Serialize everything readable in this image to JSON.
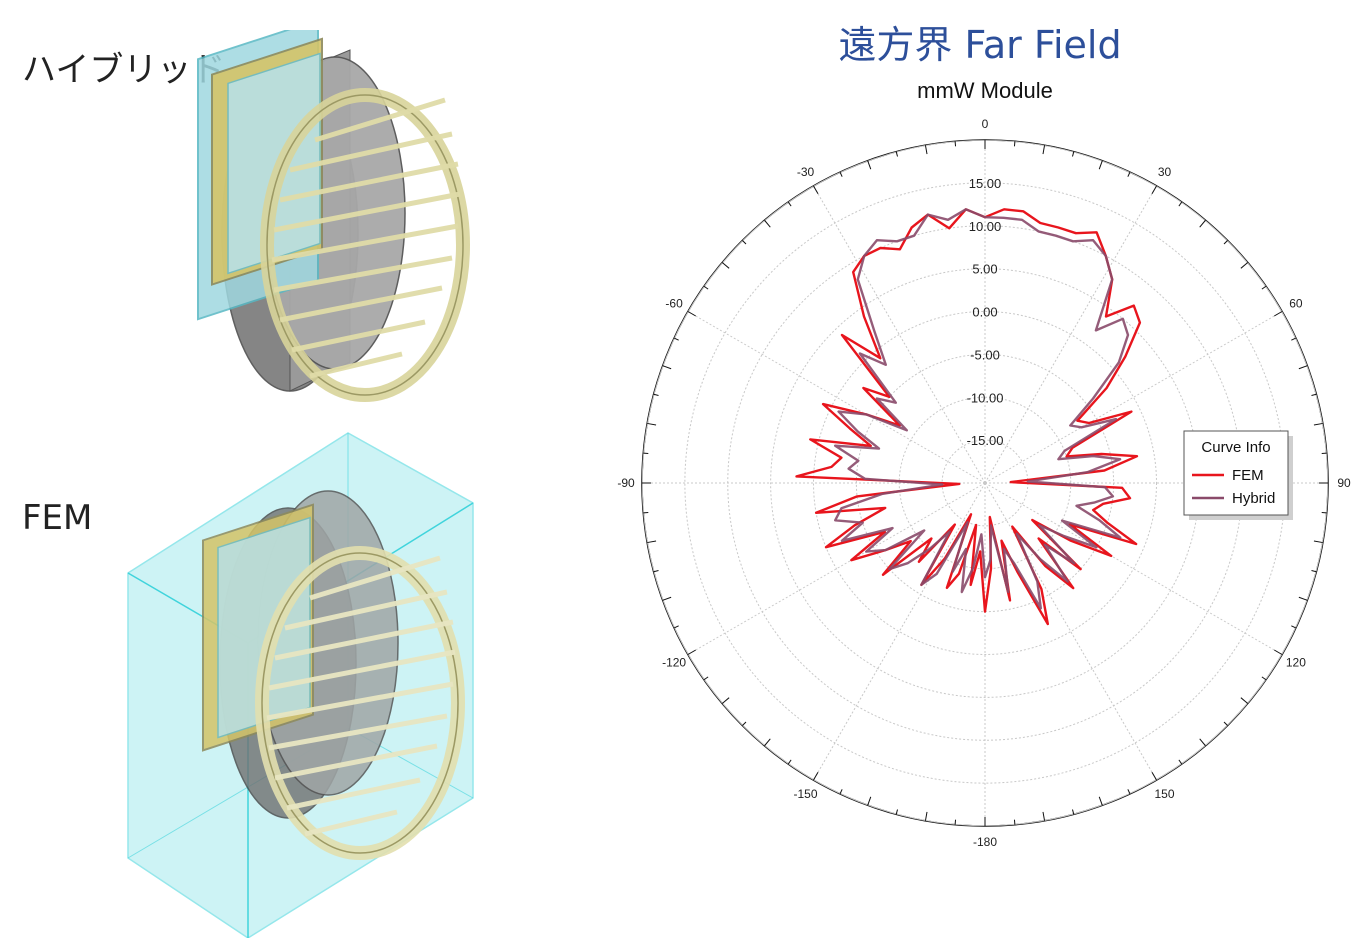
{
  "labels": {
    "hybrid": "ハイブリッド",
    "fem": "FEM"
  },
  "heading": "遠方界 Far Field",
  "colors": {
    "fem": "#e8151d",
    "hybrid": "#8a4a6a",
    "heading": "#2d4f9a",
    "airbox": "#40d4dc",
    "lens": "#9fd8e0",
    "ring": "#d8d49a",
    "patch": "#d4c468",
    "housing": "#8c8c8c"
  },
  "chart_data": {
    "type": "polar",
    "title": "mmW Module",
    "radial_range": [
      -20,
      20
    ],
    "radial_ticks": [
      -15,
      -10,
      -5,
      0,
      5,
      10,
      15
    ],
    "radial_tick_labels": [
      "-15.00",
      "-10.00",
      "-5.00",
      "0.00",
      "5.00",
      "10.00",
      "15.00"
    ],
    "angle_tick_values": [
      0,
      30,
      60,
      90,
      120,
      150,
      180,
      -150,
      -120,
      -90,
      -60,
      -30
    ],
    "angle_tick_labels": [
      "0",
      "30",
      "60",
      "90",
      "120",
      "150",
      "-180",
      "-150",
      "-120",
      "-90",
      "-60",
      "-30"
    ],
    "grid": true,
    "legend": {
      "title": "Curve Info",
      "placement": "right"
    },
    "series": [
      {
        "name": "FEM",
        "theta": [
          -180,
          -176,
          -172,
          -168,
          -164,
          -160,
          -156,
          -152,
          -148,
          -144,
          -140,
          -136,
          -132,
          -128,
          -124,
          -120,
          -116,
          -112,
          -108,
          -104,
          -100,
          -96,
          -92,
          -88,
          -84,
          -80,
          -76,
          -72,
          -68,
          -64,
          -60,
          -56,
          -52,
          -48,
          -44,
          -40,
          -36,
          -32,
          -28,
          -24,
          -20,
          -16,
          -12,
          -8,
          -4,
          0,
          4,
          8,
          12,
          16,
          20,
          24,
          28,
          32,
          36,
          40,
          44,
          48,
          52,
          56,
          60,
          64,
          68,
          72,
          76,
          80,
          84,
          88,
          92,
          96,
          100,
          104,
          108,
          112,
          116,
          120,
          124,
          128,
          132,
          136,
          140,
          144,
          148,
          152,
          156,
          160,
          164,
          168,
          172,
          176
        ],
        "r": [
          -5,
          -12,
          -8,
          -15,
          -9,
          -7,
          -16,
          -10,
          -6,
          -14,
          -8,
          -11,
          -4,
          -9,
          -6,
          -2,
          -7,
          0,
          -4,
          -8,
          0,
          -5,
          -17,
          2,
          -2,
          -3,
          1,
          -6,
          -3,
          1,
          -4,
          -8,
          -2,
          -5,
          4,
          -1,
          4,
          9,
          10,
          10,
          9,
          11,
          12,
          10,
          12,
          11,
          12,
          12,
          11,
          11,
          11,
          12,
          10,
          8,
          4,
          7,
          6,
          2,
          -2,
          -7,
          -6,
          -1,
          -9,
          -10,
          -6,
          -2,
          -6,
          -17,
          -4,
          -3,
          -6,
          -7,
          -5,
          -1,
          -9,
          -3,
          -8,
          -13,
          -5,
          -11,
          -4,
          -8,
          -14,
          -6,
          -2,
          -9,
          -13,
          -6,
          -16,
          -10
        ]
      },
      {
        "name": "Hybrid",
        "theta": [
          -180,
          -176,
          -172,
          -168,
          -164,
          -160,
          -156,
          -152,
          -148,
          -144,
          -140,
          -136,
          -132,
          -128,
          -124,
          -120,
          -116,
          -112,
          -108,
          -104,
          -100,
          -96,
          -92,
          -88,
          -84,
          -80,
          -76,
          -72,
          -68,
          -64,
          -60,
          -56,
          -52,
          -48,
          -44,
          -40,
          -36,
          -32,
          -28,
          -24,
          -20,
          -16,
          -12,
          -8,
          -4,
          0,
          4,
          8,
          12,
          16,
          20,
          24,
          28,
          32,
          36,
          40,
          44,
          48,
          52,
          56,
          60,
          64,
          68,
          72,
          76,
          80,
          84,
          88,
          92,
          96,
          100,
          104,
          108,
          112,
          116,
          120,
          124,
          128,
          132,
          136,
          140,
          144,
          148,
          152,
          156,
          160,
          164,
          168,
          172,
          176
        ],
        "r": [
          -9,
          -14,
          -10,
          -7,
          -12,
          -9,
          -15,
          -8,
          -6,
          -13,
          -10,
          -7,
          -5,
          -11,
          -6,
          -4,
          -8,
          -2,
          -5,
          -2,
          -3,
          -8,
          -15,
          -6,
          -4,
          -5,
          -2,
          -7,
          -4,
          -1,
          -4,
          -9,
          -4,
          -6,
          1,
          -2,
          2,
          8,
          10,
          11,
          10,
          10,
          12,
          11,
          12,
          11,
          11,
          11,
          10,
          10,
          10,
          11,
          10,
          8,
          2,
          5,
          4,
          1,
          -4,
          -8,
          -7,
          -3,
          -10,
          -11,
          -7,
          -4,
          -8,
          -15,
          -6,
          -5,
          -7,
          -9,
          -6,
          -3,
          -10,
          -5,
          -9,
          -12,
          -6,
          -10,
          -5,
          -9,
          -13,
          -7,
          -4,
          -10,
          -12,
          -7,
          -15,
          -11
        ]
      }
    ]
  }
}
